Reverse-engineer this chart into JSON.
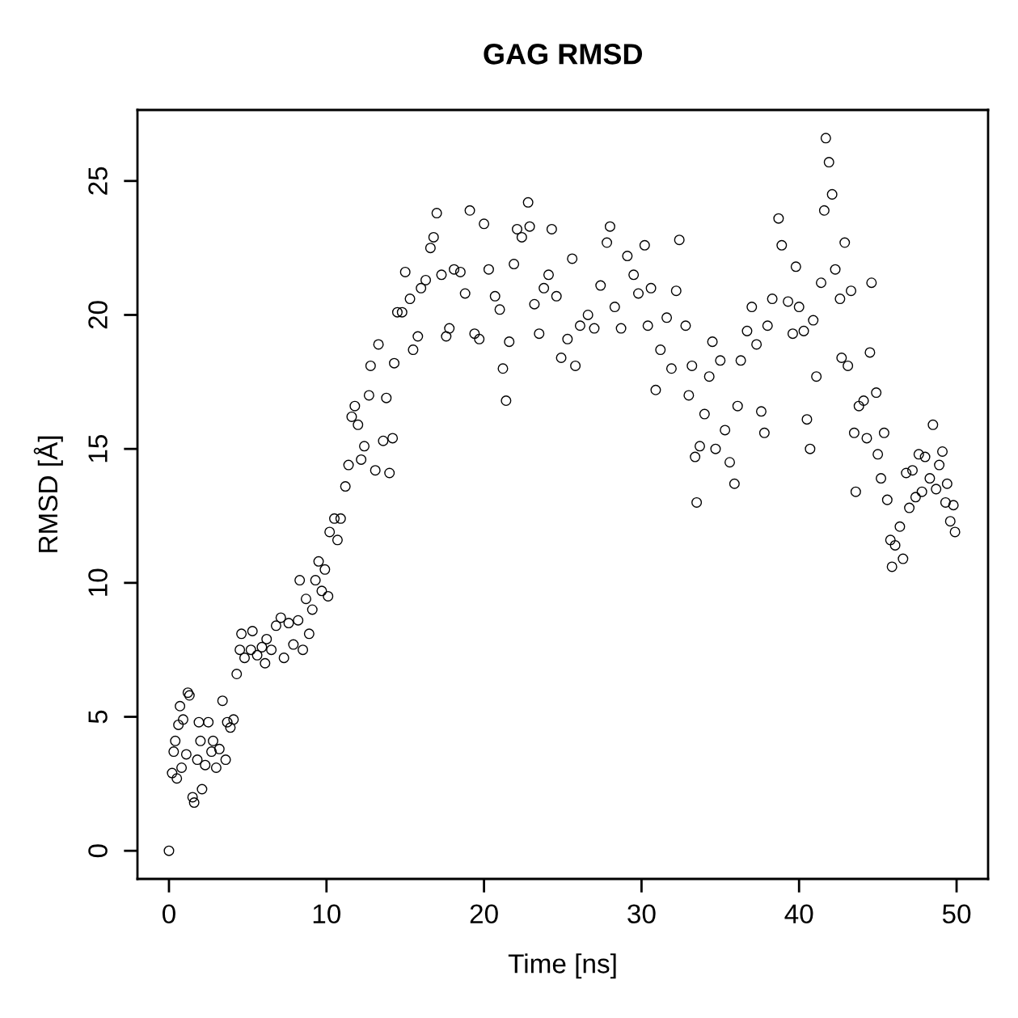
{
  "chart_data": {
    "type": "scatter",
    "title": "GAG RMSD",
    "xlabel": "Time [ns]",
    "ylabel": "RMSD [Å]",
    "xlim": [
      -2,
      52
    ],
    "ylim": [
      -1.05,
      27.65
    ],
    "xticks": [
      0,
      10,
      20,
      30,
      40,
      50
    ],
    "yticks": [
      0,
      5,
      10,
      15,
      20,
      25
    ],
    "grid": false,
    "marker": "circle",
    "series": [
      {
        "color": "#000000",
        "x": [
          0,
          0.2,
          0.3,
          0.4,
          0.5,
          0.6,
          0.7,
          0.8,
          0.9,
          1.1,
          1.2,
          1.3,
          1.5,
          1.6,
          1.8,
          1.9,
          2.0,
          2.1,
          2.3,
          2.5,
          2.7,
          2.8,
          3.0,
          3.2,
          3.4,
          3.6,
          3.7,
          3.9,
          4.1,
          4.3,
          4.5,
          4.6,
          4.8,
          5.2,
          5.3,
          5.6,
          5.9,
          6.1,
          6.2,
          6.5,
          6.8,
          7.1,
          7.3,
          7.6,
          7.9,
          8.2,
          8.3,
          8.5,
          8.7,
          8.9,
          9.1,
          9.3,
          9.5,
          9.7,
          9.9,
          10.1,
          10.2,
          10.5,
          10.7,
          10.9,
          11.2,
          11.4,
          11.6,
          11.8,
          12.0,
          12.2,
          12.4,
          12.7,
          12.8,
          13.1,
          13.3,
          13.6,
          13.8,
          14.0,
          14.2,
          14.3,
          14.5,
          14.8,
          15.0,
          15.3,
          15.5,
          15.8,
          16.0,
          16.3,
          16.6,
          16.8,
          17.0,
          17.3,
          17.6,
          17.8,
          18.1,
          18.5,
          18.8,
          19.1,
          19.4,
          19.7,
          20.0,
          20.3,
          20.7,
          21.0,
          21.2,
          21.4,
          21.6,
          21.9,
          22.1,
          22.4,
          22.8,
          22.9,
          23.2,
          23.5,
          23.8,
          24.1,
          24.3,
          24.6,
          24.9,
          25.3,
          25.6,
          25.8,
          26.1,
          26.6,
          27.0,
          27.4,
          27.8,
          28.0,
          28.3,
          28.7,
          29.1,
          29.5,
          29.8,
          30.2,
          30.4,
          30.6,
          30.9,
          31.2,
          31.6,
          31.9,
          32.2,
          32.4,
          32.8,
          33.0,
          33.2,
          33.4,
          33.5,
          33.7,
          34.0,
          34.3,
          34.5,
          34.7,
          35.0,
          35.3,
          35.6,
          35.9,
          36.1,
          36.3,
          36.7,
          37.0,
          37.3,
          37.6,
          37.8,
          38.0,
          38.3,
          38.7,
          38.9,
          39.3,
          39.6,
          39.8,
          40.0,
          40.3,
          40.5,
          40.7,
          40.9,
          41.1,
          41.4,
          41.6,
          41.7,
          41.9,
          42.1,
          42.3,
          42.6,
          42.7,
          42.9,
          43.1,
          43.3,
          43.5,
          43.6,
          43.8,
          44.1,
          44.3,
          44.5,
          44.6,
          44.9,
          45.0,
          45.2,
          45.4,
          45.6,
          45.8,
          45.9,
          46.1,
          46.4,
          46.6,
          46.8,
          47.0,
          47.2,
          47.4,
          47.6,
          47.8,
          48.0,
          48.3,
          48.5,
          48.7,
          48.9,
          49.1,
          49.3,
          49.4,
          49.6,
          49.8,
          49.9
        ],
        "values": [
          0,
          2.9,
          3.7,
          4.1,
          2.7,
          4.7,
          5.4,
          3.1,
          4.9,
          3.6,
          5.9,
          5.8,
          2.0,
          1.8,
          3.4,
          4.8,
          4.1,
          2.3,
          3.2,
          4.8,
          3.7,
          4.1,
          3.1,
          3.8,
          5.6,
          3.4,
          4.8,
          4.6,
          4.9,
          6.6,
          7.5,
          8.1,
          7.2,
          7.5,
          8.2,
          7.3,
          7.6,
          7.0,
          7.9,
          7.5,
          8.4,
          8.7,
          7.2,
          8.5,
          7.7,
          8.6,
          10.1,
          7.5,
          9.4,
          8.1,
          9.0,
          10.1,
          10.8,
          9.7,
          10.5,
          9.5,
          11.9,
          12.4,
          11.6,
          12.4,
          13.6,
          14.4,
          16.2,
          16.6,
          15.9,
          14.6,
          15.1,
          17.0,
          18.1,
          14.2,
          18.9,
          15.3,
          16.9,
          14.1,
          15.4,
          18.2,
          20.1,
          20.1,
          21.6,
          20.6,
          18.7,
          19.2,
          21.0,
          21.3,
          22.5,
          22.9,
          23.8,
          21.5,
          19.2,
          19.5,
          21.7,
          21.6,
          20.8,
          23.9,
          19.3,
          19.1,
          23.4,
          21.7,
          20.7,
          20.2,
          18.0,
          16.8,
          19.0,
          21.9,
          23.2,
          22.9,
          24.2,
          23.3,
          20.4,
          19.3,
          21.0,
          21.5,
          23.2,
          20.7,
          18.4,
          19.1,
          22.1,
          18.1,
          19.6,
          20.0,
          19.5,
          21.1,
          22.7,
          23.3,
          20.3,
          19.5,
          22.2,
          21.5,
          20.8,
          22.6,
          19.6,
          21.0,
          17.2,
          18.7,
          19.9,
          18.0,
          20.9,
          22.8,
          19.6,
          17.0,
          18.1,
          14.7,
          13.0,
          15.1,
          16.3,
          17.7,
          19.0,
          15.0,
          18.3,
          15.7,
          14.5,
          13.7,
          16.6,
          18.3,
          19.4,
          20.3,
          18.9,
          16.4,
          15.6,
          19.6,
          20.6,
          23.6,
          22.6,
          20.5,
          19.3,
          21.8,
          20.3,
          19.4,
          16.1,
          15.0,
          19.8,
          17.7,
          21.2,
          23.9,
          26.6,
          25.7,
          24.5,
          21.7,
          20.6,
          18.4,
          22.7,
          18.1,
          20.9,
          15.6,
          13.4,
          16.6,
          16.8,
          15.4,
          18.6,
          21.2,
          17.1,
          14.8,
          13.9,
          15.6,
          13.1,
          11.6,
          10.6,
          11.4,
          12.1,
          10.9,
          14.1,
          12.8,
          14.2,
          13.2,
          14.8,
          13.4,
          14.7,
          13.9,
          15.9,
          13.5,
          14.4,
          14.9,
          13.0,
          13.7,
          12.3,
          12.9,
          11.9
        ]
      }
    ]
  }
}
